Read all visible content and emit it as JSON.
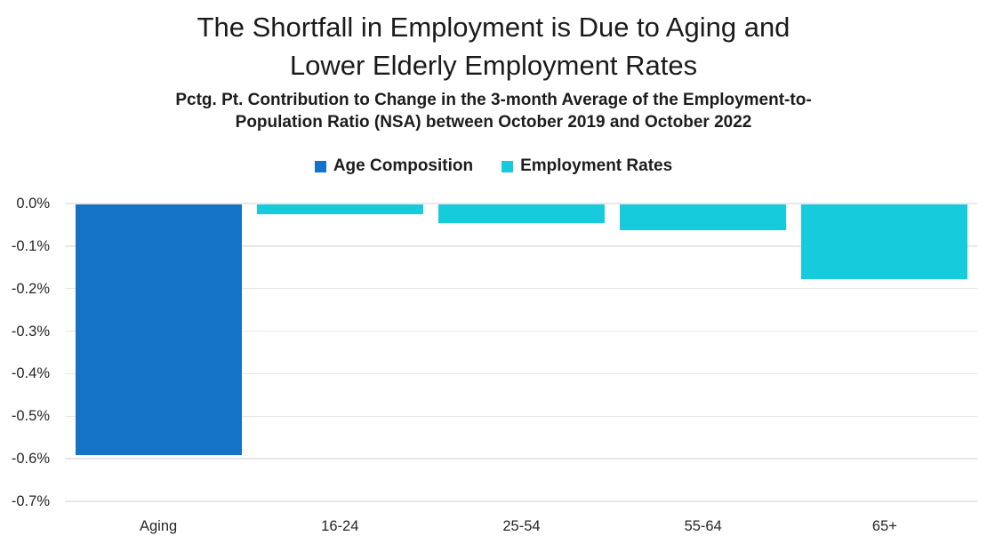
{
  "header": {
    "title_line1": "The Shortfall in Employment is Due to Aging and",
    "title_line2": "Lower Elderly Employment Rates",
    "subtitle_line1": "Pctg. Pt. Contribution to Change in the 3-month Average of the Employment-to-",
    "subtitle_line2": "Population Ratio (NSA) between October 2019 and October 2022"
  },
  "chart_data": {
    "type": "bar",
    "title": "The Shortfall in Employment is Due to Aging and Lower Elderly Employment Rates",
    "subtitle": "Pctg. Pt. Contribution to Change in the 3-month Average of the Employment-to-Population Ratio (NSA) between October 2019 and October 2022",
    "categories": [
      "Aging",
      "16-24",
      "25-54",
      "55-64",
      "65+"
    ],
    "series": [
      {
        "name": "Age Composition",
        "color": "#1573C6",
        "values": [
          -0.59,
          null,
          null,
          null,
          null
        ]
      },
      {
        "name": "Employment Rates",
        "color": "#15CBDC",
        "values": [
          null,
          -0.022,
          -0.044,
          -0.06,
          -0.175
        ]
      }
    ],
    "xlabel": "",
    "ylabel": "",
    "ylim": [
      -0.7,
      0
    ],
    "ytick_step": 0.1,
    "yticks": [
      "0.0%",
      "-0.1%",
      "-0.2%",
      "-0.3%",
      "-0.4%",
      "-0.5%",
      "-0.6%",
      "-0.7%"
    ],
    "grid": true,
    "legend_position": "top",
    "value_unit": "percentage points"
  },
  "colors": {
    "background": "#FFFFFF",
    "gridline": "#E7E7E7",
    "text": "#1B1B1B",
    "axis_text": "#262626"
  }
}
